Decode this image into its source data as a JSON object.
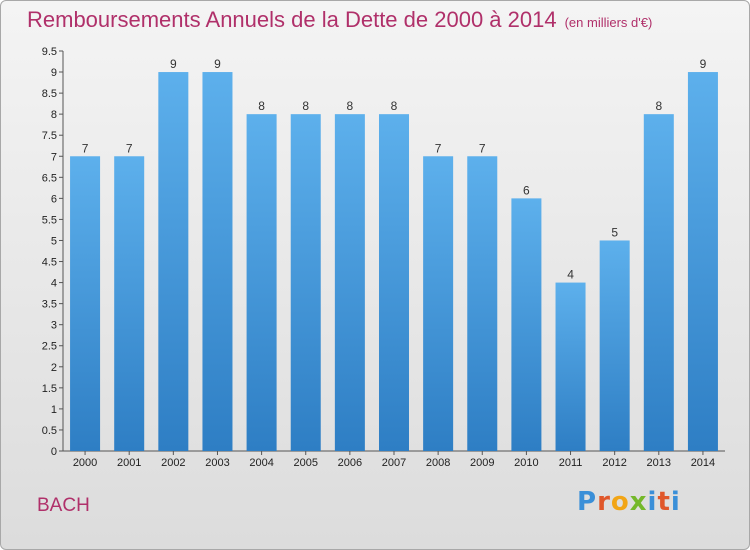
{
  "title": "Remboursements Annuels de la Dette de 2000 à 2014",
  "unit_label": "(en milliers d'€)",
  "commune": "BACH",
  "logo": {
    "letters": [
      "P",
      "r",
      "o",
      "x",
      "i",
      "t",
      "i"
    ],
    "colors": [
      "#3a8fd8",
      "#e0572a",
      "#f2a516",
      "#74b82a",
      "#3a8fd8",
      "#e0572a",
      "#3a8fd8"
    ]
  },
  "chart_data": {
    "type": "bar",
    "title": "Remboursements Annuels de la Dette de 2000 à 2014",
    "categories": [
      "2000",
      "2001",
      "2002",
      "2003",
      "2004",
      "2005",
      "2006",
      "2007",
      "2008",
      "2009",
      "2010",
      "2011",
      "2012",
      "2013",
      "2014"
    ],
    "values": [
      7,
      7,
      9,
      9,
      8,
      8,
      8,
      8,
      7,
      7,
      6,
      4,
      5,
      8,
      9
    ],
    "data_labels": [
      "7",
      "7",
      "9",
      "9",
      "8",
      "8",
      "8",
      "8",
      "7",
      "7",
      "6",
      "4",
      "5",
      "8",
      "9"
    ],
    "yticks": [
      0,
      0.5,
      1,
      1.5,
      2,
      2.5,
      3,
      3.5,
      4,
      4.5,
      5,
      5.5,
      6,
      6.5,
      7,
      7.5,
      8,
      8.5,
      9,
      9.5
    ],
    "ytick_labels": [
      "0",
      "0.5",
      "1",
      "1.5",
      "2",
      "2.5",
      "3",
      "3.5",
      "4",
      "4.5",
      "5",
      "5.5",
      "6",
      "6.5",
      "7",
      "7.5",
      "8",
      "8.5",
      "9",
      "9.5"
    ],
    "ylim": [
      0,
      9.5
    ],
    "grid": false,
    "bar_color": "#4a9ee0"
  }
}
